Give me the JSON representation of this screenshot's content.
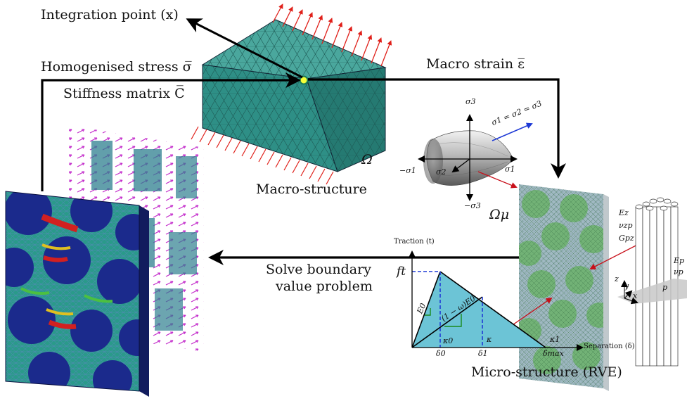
{
  "labels": {
    "integration_point": "Integration point (x)",
    "homogenised_stress": "Homogenised stress σ̅",
    "stiffness_matrix": "Stiffness matrix C̅",
    "macro_strain": "Macro strain ε̅",
    "macro_structure": "Macro-structure",
    "omega": "Ω",
    "omega_mu": "Ωμ",
    "solve_bvp_line1": "Solve boundary",
    "solve_bvp_line2": "value problem",
    "micro_structure": "Micro-structure (RVE)"
  },
  "yield_surface": {
    "sigma3_top": "σ3",
    "sigma3_bottom": "−σ3",
    "sigma1_left": "−σ1",
    "sigma1_right": "σ1",
    "sigma2": "σ2",
    "hydrostatic": "σ1 = σ2 = σ3"
  },
  "traction_law": {
    "y_axis_label": "Traction (t)",
    "x_axis_label": "Separation (δ)",
    "ft": "ft",
    "E0": "E0",
    "degraded": "(1 − ω)E0",
    "kappa0": "κ0",
    "kappa": "κ",
    "kappa1": "κ1",
    "delta0": "δ0",
    "delta1": "δ1",
    "delta_max": "δmax"
  },
  "fibre_props": {
    "Ez": "Ez",
    "nuzp": "νzp",
    "Gpz": "Gpz",
    "Ep": "Ep",
    "nup": "νp",
    "axis_z": "z",
    "axis_y": "y",
    "axis_x": "x",
    "axis_p": "p"
  },
  "colors": {
    "mesh_teal": "#2e8f86",
    "arrow_red": "#e0201a",
    "traction_fill": "#6cc4d6",
    "rve_navy": "#1b2a8c",
    "vector_magenta": "#c020c8",
    "hydro_blue": "#1f3ad6",
    "point_yellow": "#f4ff3a"
  }
}
